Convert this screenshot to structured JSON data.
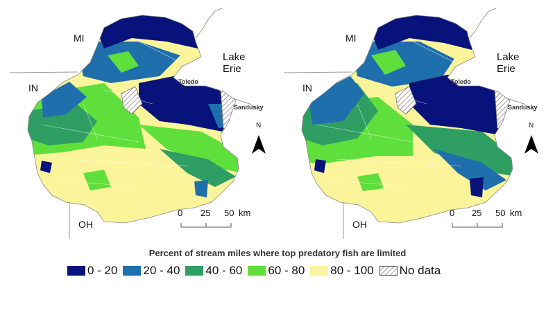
{
  "colors": {
    "c0_20": "#07137a",
    "c20_40": "#1f6fad",
    "c40_60": "#2e9e63",
    "c60_80": "#5fdf3c",
    "c80_100": "#fbf49a",
    "nodata_stroke": "#777777",
    "boundary": "#9a9a9a"
  },
  "maps": [
    {
      "state_labels": {
        "mi": "MI",
        "in": "IN",
        "oh": "OH"
      },
      "lake": {
        "line1": "Lake",
        "line2": "Erie"
      },
      "cities": {
        "toledo": "Toledo",
        "sandusky": "Sandusky"
      },
      "north": "N",
      "scale": {
        "tick0": "0",
        "tick1": "25",
        "tick2": "50",
        "unit": "km"
      }
    },
    {
      "state_labels": {
        "mi": "MI",
        "in": "IN",
        "oh": "OH"
      },
      "lake": {
        "line1": "Lake",
        "line2": "Erie"
      },
      "cities": {
        "toledo": "Toledo",
        "sandusky": "Sandusky"
      },
      "north": "N",
      "scale": {
        "tick0": "0",
        "tick1": "25",
        "tick2": "50",
        "unit": "km"
      }
    }
  ],
  "legend": {
    "title": "Percent of stream miles where top predatory fish are limited",
    "items": [
      {
        "label": "0 - 20",
        "color": "#07137a"
      },
      {
        "label": "20 - 40",
        "color": "#1f6fad"
      },
      {
        "label": "40 - 60",
        "color": "#2e9e63"
      },
      {
        "label": "60 - 80",
        "color": "#5fdf3c"
      },
      {
        "label": "80 - 100",
        "color": "#fbf49a"
      },
      {
        "label": "No data",
        "color": "hatch"
      }
    ]
  }
}
